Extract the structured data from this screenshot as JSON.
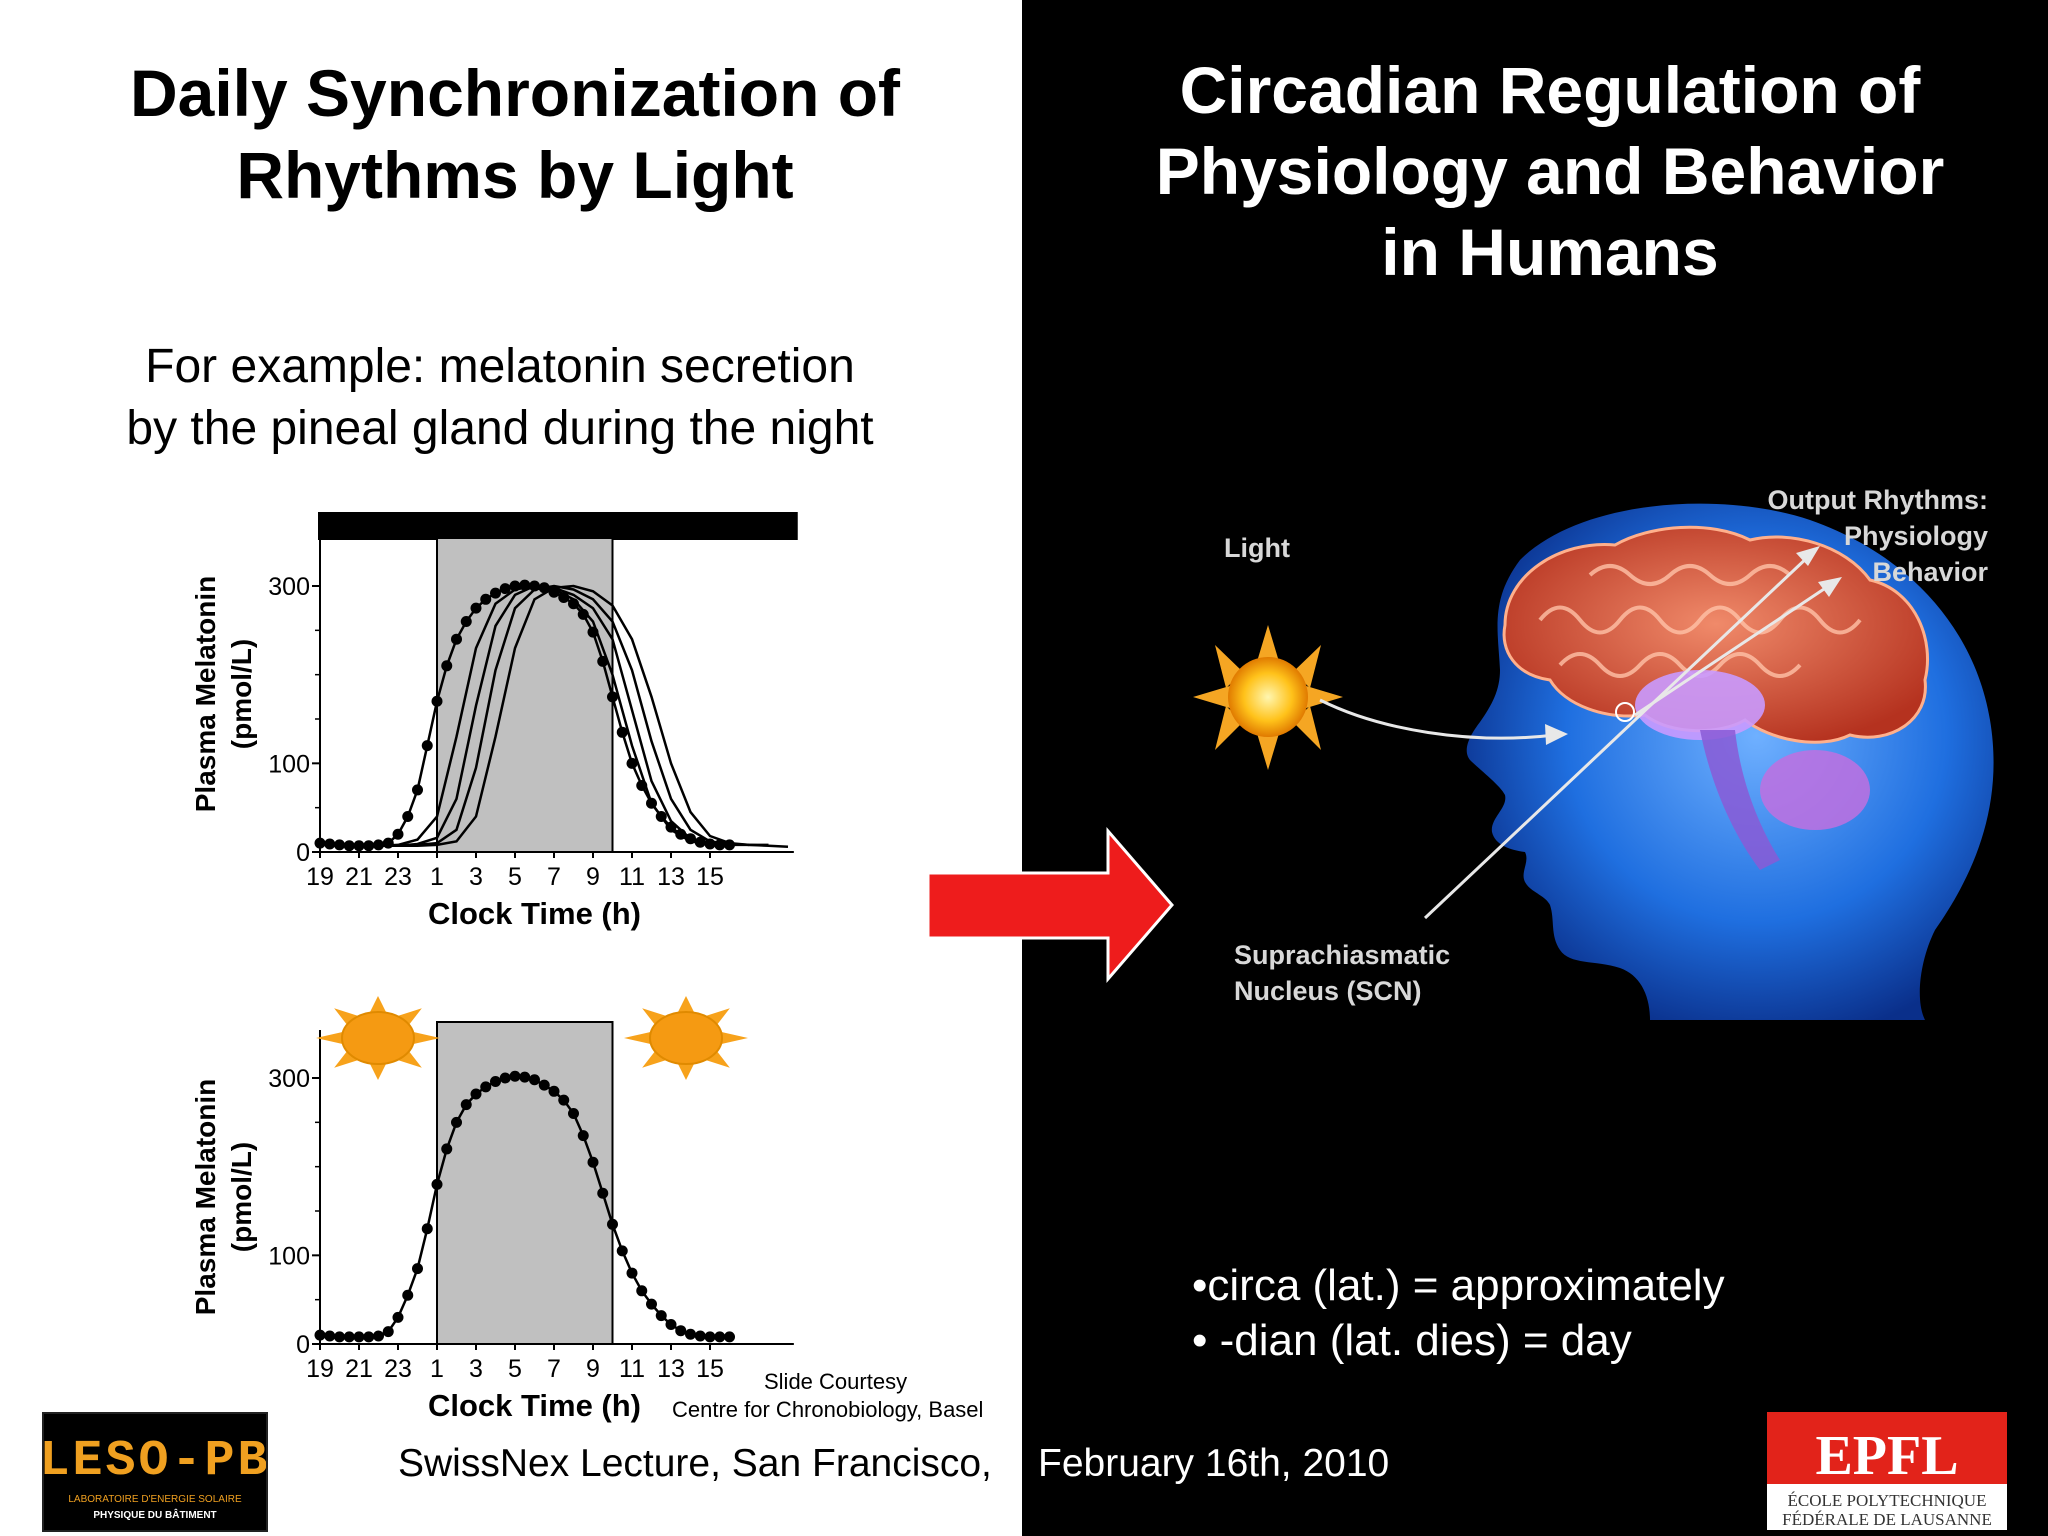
{
  "left_title": [
    "Daily Synchronization of",
    "Rhythms by Light"
  ],
  "right_title": [
    "Circadian Regulation of",
    "Physiology and Behavior",
    "in Humans"
  ],
  "example_text": [
    "For example: melatonin secretion",
    "by the pineal gland during the night"
  ],
  "chart_data": [
    {
      "type": "line",
      "ylabel": [
        "Plasma Melatonin",
        "(pmol/L)"
      ],
      "xlabel": "Clock Time (h)",
      "x_tick_labels": [
        "19",
        "21",
        "23",
        "1",
        "3",
        "5",
        "7",
        "9",
        "11",
        "13",
        "15"
      ],
      "y_ticks": [
        0,
        100,
        300
      ],
      "shaded_interval_hours_after_19": [
        6,
        15
      ],
      "top_bar": "dark",
      "series": [
        {
          "points": [
            [
              0,
              10
            ],
            [
              0.5,
              9
            ],
            [
              1,
              8
            ],
            [
              1.5,
              7
            ],
            [
              2,
              7
            ],
            [
              2.5,
              7
            ],
            [
              3,
              8
            ],
            [
              3.5,
              10
            ],
            [
              4,
              20
            ],
            [
              4.5,
              40
            ],
            [
              5,
              70
            ],
            [
              5.5,
              120
            ],
            [
              6,
              170
            ],
            [
              6.5,
              210
            ],
            [
              7,
              240
            ],
            [
              7.5,
              260
            ],
            [
              8,
              275
            ],
            [
              8.5,
              285
            ],
            [
              9,
              292
            ],
            [
              9.5,
              297
            ],
            [
              10,
              300
            ],
            [
              10.5,
              301
            ],
            [
              11,
              300
            ],
            [
              11.5,
              298
            ],
            [
              12,
              293
            ],
            [
              12.5,
              287
            ],
            [
              13,
              280
            ],
            [
              13.5,
              268
            ],
            [
              14,
              248
            ],
            [
              14.5,
              215
            ],
            [
              15,
              175
            ],
            [
              15.5,
              135
            ],
            [
              16,
              100
            ],
            [
              16.5,
              75
            ],
            [
              17,
              55
            ],
            [
              17.5,
              40
            ],
            [
              18,
              28
            ],
            [
              18.5,
              20
            ],
            [
              19,
              15
            ],
            [
              19.5,
              11
            ],
            [
              20,
              9
            ],
            [
              20.5,
              8
            ],
            [
              21,
              8
            ]
          ]
        },
        {
          "points": [
            [
              0,
              10
            ],
            [
              1,
              8
            ],
            [
              2,
              7
            ],
            [
              3,
              7
            ],
            [
              4,
              8
            ],
            [
              5,
              14
            ],
            [
              6,
              40
            ],
            [
              7,
              130
            ],
            [
              8,
              230
            ],
            [
              9,
              280
            ],
            [
              10,
              296
            ],
            [
              11,
              300
            ],
            [
              12,
              296
            ],
            [
              13,
              285
            ],
            [
              14,
              260
            ],
            [
              15,
              200
            ],
            [
              16,
              120
            ],
            [
              17,
              55
            ],
            [
              18,
              25
            ],
            [
              19,
              12
            ],
            [
              20,
              9
            ],
            [
              21,
              8
            ]
          ]
        },
        {
          "points": [
            [
              0,
              10
            ],
            [
              1,
              8
            ],
            [
              2,
              7
            ],
            [
              3,
              7
            ],
            [
              4,
              7
            ],
            [
              5,
              9
            ],
            [
              6,
              16
            ],
            [
              7,
              60
            ],
            [
              8,
              165
            ],
            [
              9,
              255
            ],
            [
              10,
              290
            ],
            [
              11,
              300
            ],
            [
              12,
              298
            ],
            [
              13,
              290
            ],
            [
              14,
              275
            ],
            [
              15,
              240
            ],
            [
              16,
              160
            ],
            [
              17,
              80
            ],
            [
              18,
              35
            ],
            [
              19,
              15
            ],
            [
              20,
              10
            ],
            [
              21,
              8
            ],
            [
              22,
              8
            ]
          ]
        },
        {
          "points": [
            [
              0,
              10
            ],
            [
              1,
              8
            ],
            [
              2,
              7
            ],
            [
              3,
              7
            ],
            [
              4,
              7
            ],
            [
              5,
              8
            ],
            [
              6,
              10
            ],
            [
              7,
              25
            ],
            [
              8,
              95
            ],
            [
              9,
              205
            ],
            [
              10,
              275
            ],
            [
              11,
              296
            ],
            [
              12,
              300
            ],
            [
              13,
              296
            ],
            [
              14,
              285
            ],
            [
              15,
              260
            ],
            [
              16,
              205
            ],
            [
              17,
              125
            ],
            [
              18,
              60
            ],
            [
              19,
              25
            ],
            [
              20,
              12
            ],
            [
              21,
              9
            ],
            [
              22,
              8
            ],
            [
              23,
              8
            ]
          ]
        },
        {
          "points": [
            [
              0,
              10
            ],
            [
              1,
              8
            ],
            [
              2,
              7
            ],
            [
              3,
              7
            ],
            [
              4,
              7
            ],
            [
              5,
              7
            ],
            [
              6,
              8
            ],
            [
              7,
              12
            ],
            [
              8,
              40
            ],
            [
              9,
              130
            ],
            [
              10,
              230
            ],
            [
              11,
              285
            ],
            [
              12,
              298
            ],
            [
              13,
              300
            ],
            [
              14,
              294
            ],
            [
              15,
              278
            ],
            [
              16,
              240
            ],
            [
              17,
              175
            ],
            [
              18,
              100
            ],
            [
              19,
              45
            ],
            [
              20,
              18
            ],
            [
              21,
              10
            ],
            [
              22,
              8
            ],
            [
              23,
              7
            ],
            [
              24,
              6
            ]
          ]
        }
      ]
    },
    {
      "type": "line",
      "ylabel": [
        "Plasma Melatonin",
        "(pmol/L)"
      ],
      "xlabel": "Clock Time (h)",
      "x_tick_labels": [
        "19",
        "21",
        "23",
        "1",
        "3",
        "5",
        "7",
        "9",
        "11",
        "13",
        "15"
      ],
      "y_ticks": [
        0,
        100,
        300
      ],
      "shaded_interval_hours_after_19": [
        6,
        15
      ],
      "series": [
        {
          "points": [
            [
              0,
              10
            ],
            [
              0.5,
              9
            ],
            [
              1,
              8
            ],
            [
              1.5,
              8
            ],
            [
              2,
              8
            ],
            [
              2.5,
              8
            ],
            [
              3,
              9
            ],
            [
              3.5,
              14
            ],
            [
              4,
              30
            ],
            [
              4.5,
              55
            ],
            [
              5,
              85
            ],
            [
              5.5,
              130
            ],
            [
              6,
              180
            ],
            [
              6.5,
              220
            ],
            [
              7,
              250
            ],
            [
              7.5,
              270
            ],
            [
              8,
              282
            ],
            [
              8.5,
              290
            ],
            [
              9,
              296
            ],
            [
              9.5,
              300
            ],
            [
              10,
              302
            ],
            [
              10.5,
              301
            ],
            [
              11,
              298
            ],
            [
              11.5,
              292
            ],
            [
              12,
              285
            ],
            [
              12.5,
              275
            ],
            [
              13,
              260
            ],
            [
              13.5,
              235
            ],
            [
              14,
              205
            ],
            [
              14.5,
              170
            ],
            [
              15,
              135
            ],
            [
              15.5,
              105
            ],
            [
              16,
              80
            ],
            [
              16.5,
              60
            ],
            [
              17,
              45
            ],
            [
              17.5,
              32
            ],
            [
              18,
              22
            ],
            [
              18.5,
              15
            ],
            [
              19,
              11
            ],
            [
              19.5,
              9
            ],
            [
              20,
              8
            ],
            [
              20.5,
              8
            ],
            [
              21,
              8
            ]
          ]
        }
      ]
    }
  ],
  "courtesy": [
    "Slide Courtesy",
    "Centre for Chronobiology, Basel"
  ],
  "footer_left": "SwissNex Lecture, San Francisco,",
  "footer_right": "February 16th, 2010",
  "diagram": {
    "light_label": "Light",
    "output_label": [
      "Output Rhythms:",
      "Physiology",
      "Behavior"
    ],
    "scn_label": [
      "Suprachiasmatic",
      "Nucleus (SCN)"
    ]
  },
  "bullets": [
    "•circa (lat.) = approximately",
    "• -dian (lat. dies) = day"
  ],
  "logos": {
    "leso": {
      "main": "LESO-PB",
      "sub1": "LABORATOIRE D'ENERGIE SOLAIRE",
      "sub2": "PHYSIQUE DU BÂTIMENT"
    },
    "epfl": {
      "main": "EPFL",
      "sub1": "ÉCOLE POLYTECHNIQUE",
      "sub2": "FÉDÉRALE DE LAUSANNE"
    }
  },
  "colors": {
    "arrow": "#ee1c1c",
    "shade": "#c0c0c0",
    "brain": "#c8452e",
    "head": "#1a66dd",
    "sun": "#f5a623"
  }
}
